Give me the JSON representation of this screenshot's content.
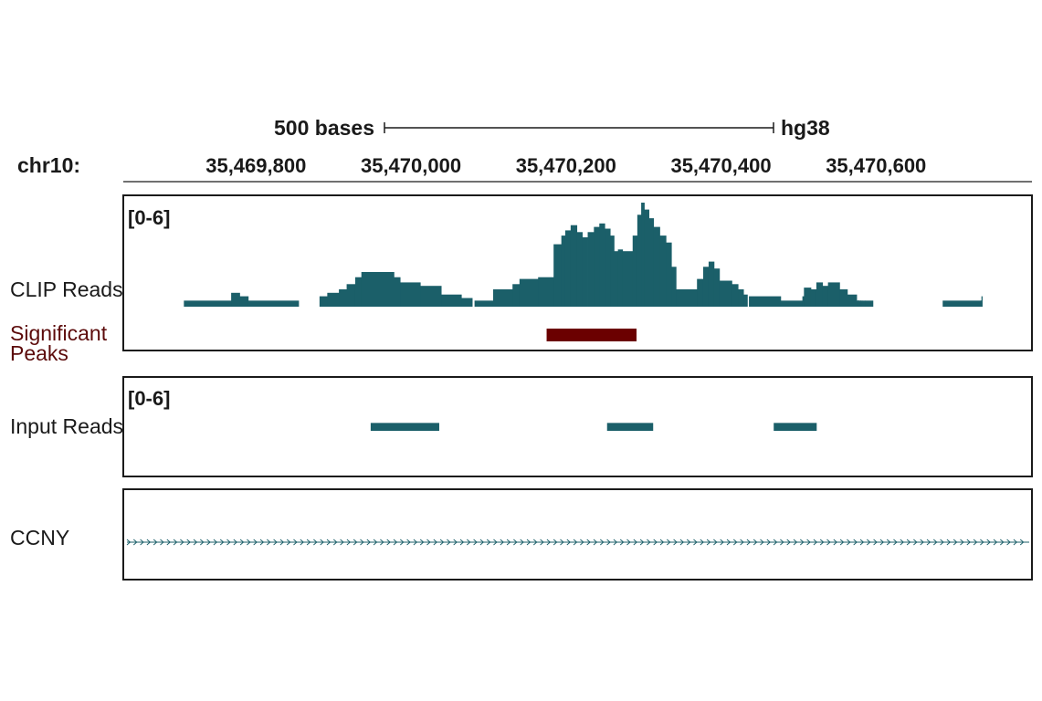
{
  "colors": {
    "track": "#1b5f69",
    "peak": "#6b0000",
    "peak_label": "#5c0b0b",
    "text": "#1a1a1a",
    "frame": "#1a1a1a"
  },
  "chart_data": {
    "type": "genome-browser-tracks",
    "chrom_label": "chr10:",
    "assembly": "hg38",
    "scale_bar_label": "500 bases",
    "scale_bar_length_bp": 500,
    "view_range": [
      35469630,
      35470800
    ],
    "ticks": [
      {
        "pos": 35469800,
        "label": "35,469,800"
      },
      {
        "pos": 35470000,
        "label": "35,470,000"
      },
      {
        "pos": 35470200,
        "label": "35,470,200"
      },
      {
        "pos": 35470400,
        "label": "35,470,400"
      },
      {
        "pos": 35470600,
        "label": "35,470,600"
      }
    ],
    "clip_reads": {
      "label": "CLIP Reads",
      "range_label": "[0-6]",
      "ylim": [
        0,
        6
      ],
      "bins": [
        [
          35469707,
          35469768,
          0.35
        ],
        [
          35469768,
          35469779,
          0.8
        ],
        [
          35469779,
          35469790,
          0.6
        ],
        [
          35469790,
          35469855,
          0.35
        ],
        [
          35469882,
          35469892,
          0.6
        ],
        [
          35469892,
          35469907,
          0.8
        ],
        [
          35469907,
          35469917,
          1.0
        ],
        [
          35469917,
          35469928,
          1.3
        ],
        [
          35469928,
          35469936,
          1.7
        ],
        [
          35469936,
          35469978,
          2.0
        ],
        [
          35469978,
          35469986,
          1.7
        ],
        [
          35469986,
          35470012,
          1.4
        ],
        [
          35470012,
          35470039,
          1.2
        ],
        [
          35470039,
          35470065,
          0.7
        ],
        [
          35470065,
          35470079,
          0.5
        ],
        [
          35470082,
          35470106,
          0.35
        ],
        [
          35470106,
          35470131,
          1.0
        ],
        [
          35470131,
          35470140,
          1.3
        ],
        [
          35470140,
          35470164,
          1.6
        ],
        [
          35470164,
          35470184,
          1.7
        ],
        [
          35470184,
          35470194,
          3.6
        ],
        [
          35470194,
          35470199,
          4.1
        ],
        [
          35470199,
          35470206,
          4.4
        ],
        [
          35470206,
          35470214,
          4.7
        ],
        [
          35470214,
          35470221,
          4.3
        ],
        [
          35470221,
          35470228,
          4.0
        ],
        [
          35470228,
          35470236,
          4.3
        ],
        [
          35470236,
          35470243,
          4.6
        ],
        [
          35470243,
          35470250,
          4.8
        ],
        [
          35470250,
          35470257,
          4.5
        ],
        [
          35470257,
          35470262,
          4.1
        ],
        [
          35470262,
          35470267,
          3.2
        ],
        [
          35470267,
          35470273,
          3.3
        ],
        [
          35470273,
          35470286,
          3.2
        ],
        [
          35470286,
          35470292,
          4.1
        ],
        [
          35470292,
          35470297,
          5.3
        ],
        [
          35470297,
          35470301,
          6.0
        ],
        [
          35470301,
          35470307,
          5.6
        ],
        [
          35470307,
          35470313,
          5.1
        ],
        [
          35470313,
          35470321,
          4.6
        ],
        [
          35470321,
          35470329,
          4.1
        ],
        [
          35470329,
          35470336,
          3.7
        ],
        [
          35470336,
          35470342,
          2.3
        ],
        [
          35470342,
          35470369,
          1.0
        ],
        [
          35470369,
          35470377,
          1.6
        ],
        [
          35470377,
          35470384,
          2.3
        ],
        [
          35470384,
          35470391,
          2.6
        ],
        [
          35470391,
          35470398,
          2.2
        ],
        [
          35470398,
          35470414,
          1.5
        ],
        [
          35470414,
          35470422,
          1.3
        ],
        [
          35470422,
          35470429,
          1.0
        ],
        [
          35470429,
          35470434,
          0.7
        ],
        [
          35470436,
          35470477,
          0.6
        ],
        [
          35470477,
          35470505,
          0.35
        ],
        [
          35470505,
          35470507,
          0.6
        ],
        [
          35470507,
          35470516,
          1.1
        ],
        [
          35470516,
          35470523,
          1.0
        ],
        [
          35470523,
          35470531,
          1.4
        ],
        [
          35470531,
          35470538,
          1.2
        ],
        [
          35470538,
          35470553,
          1.4
        ],
        [
          35470553,
          35470563,
          1.0
        ],
        [
          35470563,
          35470575,
          0.7
        ],
        [
          35470575,
          35470576,
          0.35
        ],
        [
          35470576,
          35470576,
          0.35
        ],
        [
          35470576,
          35470576,
          0.35
        ],
        [
          35470576,
          35470577,
          0.35
        ],
        [
          35470577,
          35470577,
          0.35
        ],
        [
          35470577,
          35470577,
          0.35
        ],
        [
          35470577,
          35470579,
          0.35
        ],
        [
          35470579,
          35470580,
          0.35
        ],
        [
          35470580,
          35470580,
          0.35
        ],
        [
          35470580,
          35470582,
          0.35
        ],
        [
          35470582,
          35470586,
          0.35
        ],
        [
          35470586,
          35470596,
          0.35
        ],
        [
          35470686,
          35470735,
          0.35
        ],
        [
          35470735,
          35470735,
          0.35
        ],
        [
          35470735,
          35470736,
          0.35
        ],
        [
          35470736,
          35470737,
          0.6
        ]
      ]
    },
    "significant_peaks": {
      "label_line1": "Significant",
      "label_line2": "Peaks",
      "peaks": [
        [
          35470175,
          35470291
        ]
      ]
    },
    "input_reads": {
      "label": "Input Reads",
      "range_label": "[0-6]",
      "ylim": [
        0,
        6
      ],
      "bins": [
        [
          35469948,
          35470036,
          0.6
        ],
        [
          35470253,
          35470312,
          0.6
        ],
        [
          35470468,
          35470523,
          0.6
        ]
      ]
    },
    "gene": {
      "label": "CCNY",
      "strand": "+"
    }
  }
}
